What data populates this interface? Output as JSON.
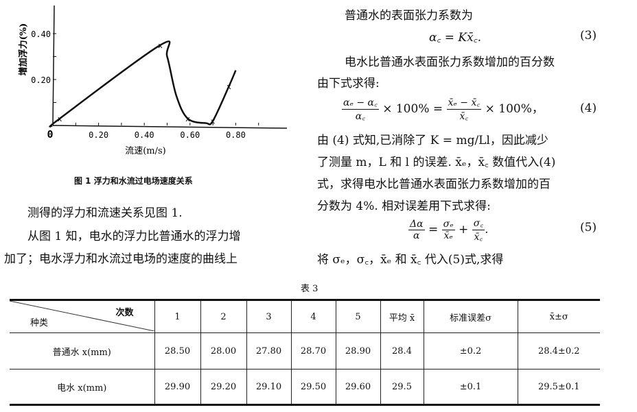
{
  "figure": {
    "caption": "图 1   浮力和水流过电场速度关系",
    "chart_data": {
      "type": "line",
      "xlabel": "流速(m/s)",
      "ylabel": "增加浮力(%)",
      "xlim": [
        0,
        1.0
      ],
      "ylim": [
        0,
        0.5
      ],
      "x_ticks": [
        "0",
        "0.20",
        "0.40",
        "0.60",
        "0.80"
      ],
      "y_ticks": [
        "0.20",
        "0.40"
      ],
      "markers": {
        "x": [
          0.03,
          0.47,
          0.59,
          0.7,
          0.77
        ],
        "y": [
          0.03,
          0.35,
          0.03,
          0.02,
          0.17
        ]
      },
      "curve": {
        "x": [
          0,
          0.03,
          0.47,
          0.5,
          0.54,
          0.59,
          0.67,
          0.7,
          0.77,
          0.8
        ],
        "y": [
          0,
          0.03,
          0.35,
          0.3,
          0.13,
          0.03,
          0.01,
          0.02,
          0.17,
          0.24
        ]
      },
      "marker_symbol": "x"
    }
  },
  "left_text": [
    "测得的浮力和流速关系见图 1.",
    "从图 1 知，电水的浮力比普通水的浮力增",
    "加了；电水浮力和水流过电场的速度的曲线上"
  ],
  "right_text": {
    "l1": "普通水的表面张力系数为",
    "eq3": "α꜀ = Kx̄꜀.",
    "eq3_num": "(3)",
    "l2": "电水比普通水表面张力系数增加的百分数",
    "l3": "由下式求得:",
    "eq4_num1": "αₑ − α꜀",
    "eq4_den1": "α꜀",
    "eq4_mid": "× 100% =",
    "eq4_num2": "x̄ₑ − x̄꜀",
    "eq4_den2": "x̄꜀",
    "eq4_end": "× 100%，",
    "eq4_num": "(4)",
    "l4": "由 (4) 式知,已消除了 K = mg/Ll，因此减少",
    "l5": "了测量 m，L 和 l 的误差. x̄ₑ，x̄꜀ 数值代入(4)",
    "l6": "式，求得电水比普通水表面张力系数增加的百",
    "l7": "分数为 4%. 相对误差用下式求得:",
    "eq5_num1": "Δα",
    "eq5_den1": "α",
    "eq5_num2": "σₑ",
    "eq5_den2": "x̄ₑ",
    "eq5_num3": "σ꜀",
    "eq5_den3": "x̄꜀",
    "eq5_num": "(5)",
    "l8": "将 σₑ，σ꜀，x̄ₑ 和 x̄꜀ 代入(5)式,求得"
  },
  "table": {
    "title": "表 3",
    "corner_top": "次数",
    "corner_bottom": "种类",
    "headers": [
      "1",
      "2",
      "3",
      "4",
      "5",
      "平均 x̄",
      "标准误差σ",
      "x̄±σ"
    ],
    "rows": [
      {
        "label": "普通水 x(mm)",
        "cells": [
          "28.50",
          "28.00",
          "27.80",
          "28.70",
          "28.90",
          "28.4",
          "±0.2",
          "28.4±0.2"
        ]
      },
      {
        "label": "电水 x(mm)",
        "cells": [
          "29.90",
          "29.20",
          "29.10",
          "29.50",
          "29.60",
          "29.5",
          "±0.1",
          "29.5±0.1"
        ]
      }
    ]
  }
}
